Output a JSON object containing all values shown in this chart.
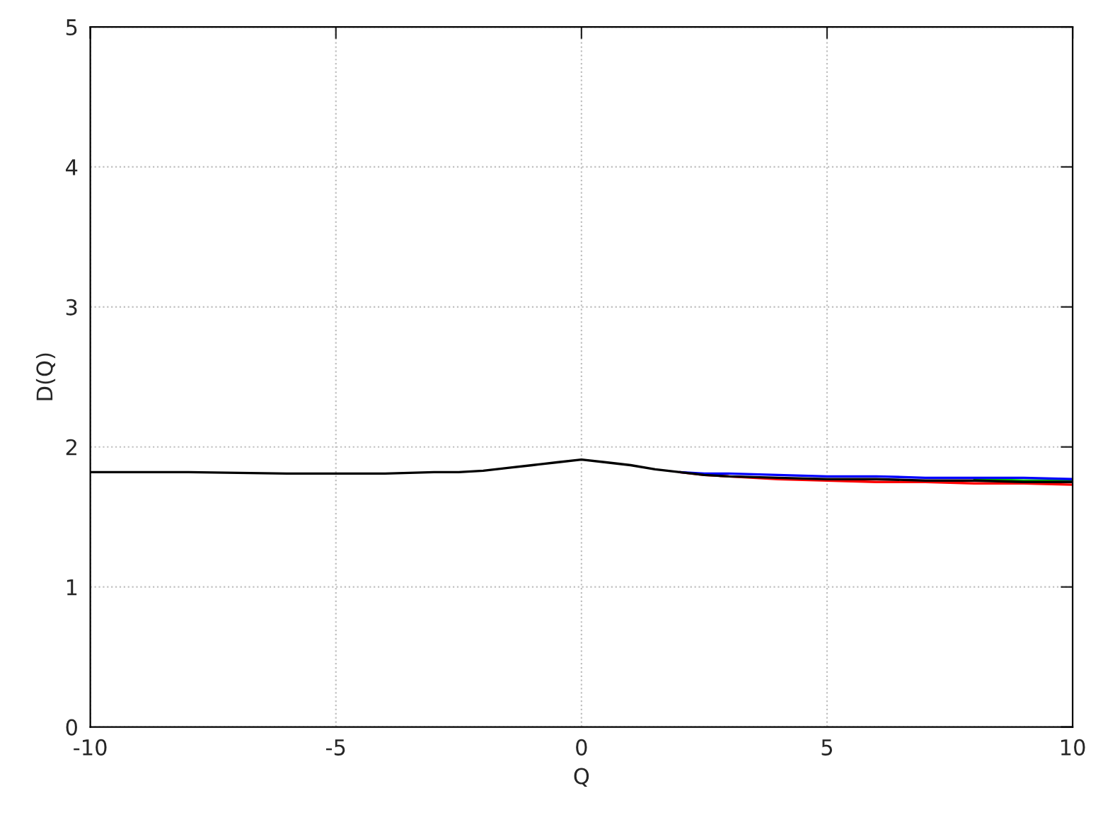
{
  "chart_data": {
    "type": "line",
    "xlabel": "Q",
    "ylabel": "D(Q)",
    "x": [
      -10,
      -8,
      -6,
      -5,
      -4,
      -3,
      -2.5,
      -2,
      -1.5,
      -1,
      -0.5,
      0,
      0.5,
      1,
      1.5,
      2,
      2.5,
      3,
      4,
      5,
      6,
      7,
      8,
      9,
      10
    ],
    "series": [
      {
        "color": "#ff0000",
        "values": [
          null,
          null,
          null,
          null,
          null,
          null,
          null,
          null,
          null,
          null,
          null,
          null,
          null,
          null,
          null,
          1.82,
          1.8,
          1.79,
          1.77,
          1.76,
          1.75,
          1.75,
          1.74,
          1.74,
          1.73
        ]
      },
      {
        "color": "#00c000",
        "values": [
          null,
          null,
          null,
          null,
          null,
          null,
          null,
          null,
          null,
          null,
          null,
          null,
          null,
          null,
          null,
          null,
          null,
          null,
          null,
          null,
          null,
          null,
          1.77,
          1.76,
          1.76
        ]
      },
      {
        "color": "#0000ff",
        "values": [
          null,
          null,
          null,
          null,
          null,
          null,
          null,
          null,
          null,
          null,
          null,
          null,
          null,
          null,
          null,
          1.82,
          1.81,
          1.81,
          1.8,
          1.79,
          1.79,
          1.78,
          1.78,
          1.78,
          1.77
        ]
      },
      {
        "color": "#000000",
        "values": [
          1.82,
          1.82,
          1.81,
          1.81,
          1.81,
          1.82,
          1.82,
          1.83,
          1.85,
          1.87,
          1.89,
          1.91,
          1.89,
          1.87,
          1.84,
          1.82,
          1.8,
          1.79,
          1.78,
          1.77,
          1.77,
          1.76,
          1.76,
          1.75,
          1.75
        ]
      }
    ],
    "xlim": [
      -10,
      10
    ],
    "ylim": [
      0,
      5
    ],
    "xticks": [
      -10,
      -5,
      0,
      5,
      10
    ],
    "yticks": [
      0,
      1,
      2,
      3,
      4,
      5
    ],
    "grid": true,
    "marker": "none",
    "line_style": "solid"
  }
}
